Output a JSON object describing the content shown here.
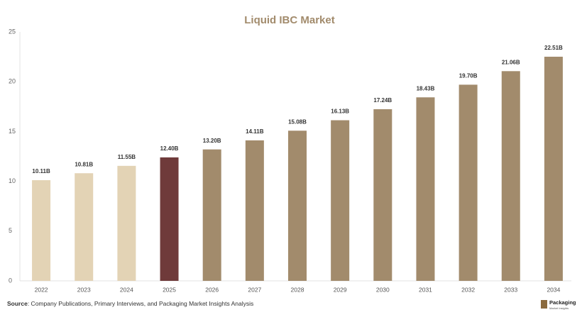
{
  "chart_data": {
    "type": "bar",
    "title": "Liquid IBC Market",
    "categories": [
      "2022",
      "2023",
      "2024",
      "2025",
      "2026",
      "2027",
      "2028",
      "2029",
      "2030",
      "2031",
      "2032",
      "2033",
      "2034"
    ],
    "values": [
      10.11,
      10.81,
      11.55,
      12.4,
      13.2,
      14.11,
      15.08,
      16.13,
      17.24,
      18.43,
      19.7,
      21.06,
      22.51
    ],
    "value_labels": [
      "10.11B",
      "10.81B",
      "11.55B",
      "12.40B",
      "13.20B",
      "14.11B",
      "15.08B",
      "16.13B",
      "17.24B",
      "18.43B",
      "19.70B",
      "21.06B",
      "22.51B"
    ],
    "colors": [
      "#e3d3b5",
      "#e3d3b5",
      "#e3d3b5",
      "#6f3a3a",
      "#a28b6c",
      "#a28b6c",
      "#a28b6c",
      "#a28b6c",
      "#a28b6c",
      "#a28b6c",
      "#a28b6c",
      "#a28b6c",
      "#a28b6c"
    ],
    "ylim": [
      0,
      25
    ],
    "yticks": [
      0,
      5,
      10,
      15,
      20,
      25
    ],
    "grid": false
  },
  "footer": {
    "source_label": "Source",
    "source_text": ": Company Publications, Primary Interviews, and Packaging Market Insights Analysis"
  },
  "logo": {
    "brand": "Packaging",
    "tagline": "Market Insights"
  }
}
